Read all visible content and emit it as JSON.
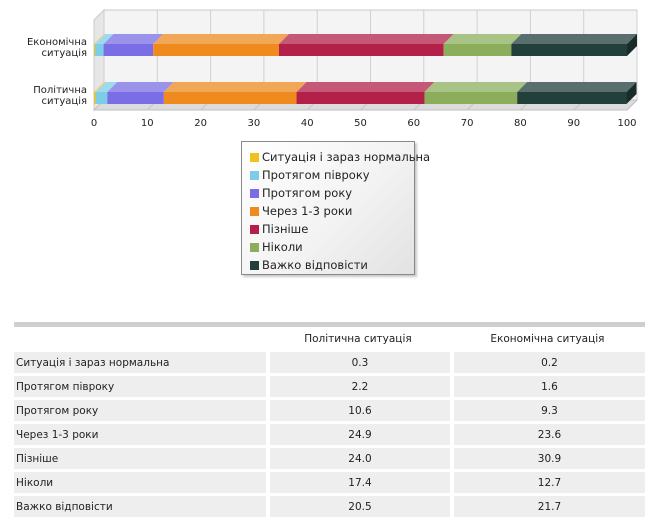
{
  "chart_data": {
    "type": "bar",
    "orientation": "horizontal",
    "stacked": true,
    "categories": [
      "Економічна ситуація",
      "Політична ситуація"
    ],
    "category_label_lines": [
      [
        "Економічна",
        "ситуація"
      ],
      [
        "Політична",
        "ситуація"
      ]
    ],
    "series": [
      {
        "name": "Ситуація і зараз нормальна",
        "color": "#f2c21c",
        "values": [
          0.2,
          0.3
        ]
      },
      {
        "name": "Протягом півроку",
        "color": "#7ccde8",
        "values": [
          1.6,
          2.2
        ]
      },
      {
        "name": "Протягом року",
        "color": "#7a6de6",
        "values": [
          9.3,
          10.6
        ]
      },
      {
        "name": "Через 1-3 роки",
        "color": "#ee8a1e",
        "values": [
          23.6,
          24.9
        ]
      },
      {
        "name": "Пізніше",
        "color": "#b3204a",
        "values": [
          30.9,
          24.0
        ]
      },
      {
        "name": "Ніколи",
        "color": "#8cad5c",
        "values": [
          12.7,
          17.4
        ]
      },
      {
        "name": "Важко відповісти",
        "color": "#223f3c",
        "values": [
          21.7,
          20.5
        ]
      }
    ],
    "xlim": [
      0,
      100
    ],
    "xticks": [
      "0",
      "10",
      "20",
      "30",
      "40",
      "50",
      "60",
      "70",
      "80",
      "90",
      "100"
    ],
    "grid": true,
    "legend_position": "bottom-center"
  },
  "table": {
    "columns": [
      "",
      "Політична ситуація",
      "Економічна ситуація"
    ],
    "rows": [
      {
        "label": "Ситуація і зараз нормальна",
        "political": "0.3",
        "economic": "0.2"
      },
      {
        "label": "Протягом півроку",
        "political": "2.2",
        "economic": "1.6"
      },
      {
        "label": "Протягом року",
        "political": "10.6",
        "economic": "9.3"
      },
      {
        "label": "Через 1-3 роки",
        "political": "24.9",
        "economic": "23.6"
      },
      {
        "label": "Пізніше",
        "political": "24.0",
        "economic": "30.9"
      },
      {
        "label": "Ніколи",
        "political": "17.4",
        "economic": "12.7"
      },
      {
        "label": "Важко відповісти",
        "political": "20.5",
        "economic": "21.7"
      }
    ]
  }
}
